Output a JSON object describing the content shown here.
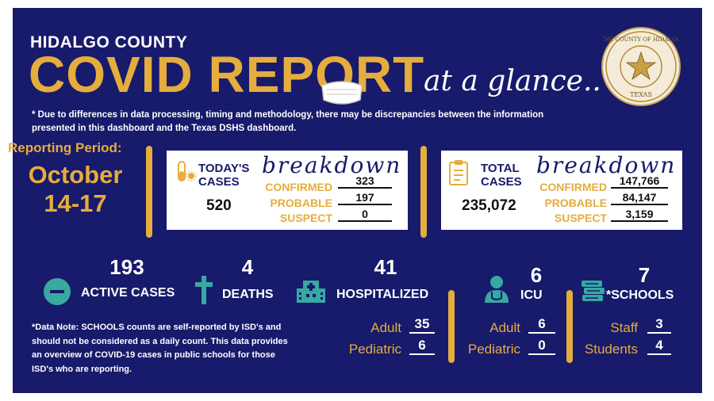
{
  "header": {
    "county": "HIDALGO COUNTY",
    "title": "COVID REPORT",
    "tagline": "at a glance..",
    "seal_text_top": "THE COUNTY OF HIDALGO",
    "seal_text_bottom": "TEXAS"
  },
  "disclaimer": "* Due to differences in data processing, timing and methodology, there may be discrepancies between the information presented in this dashboard and the Texas DSHS dashboard.",
  "reporting_period": {
    "label": "Reporting Period:",
    "month": "October",
    "days": "14-17"
  },
  "today": {
    "title_line1": "TODAY'S",
    "title_line2": "CASES",
    "total": "520",
    "breakdown_label": "breakdown",
    "rows": [
      {
        "label": "CONFIRMED",
        "value": "323"
      },
      {
        "label": "PROBABLE",
        "value": "197"
      },
      {
        "label": "SUSPECT",
        "value": "0"
      }
    ]
  },
  "total": {
    "title_line1": "TOTAL",
    "title_line2": "CASES",
    "total": "235,072",
    "breakdown_label": "breakdown",
    "rows": [
      {
        "label": "CONFIRMED",
        "value": "147,766"
      },
      {
        "label": "PROBABLE",
        "value": "84,147"
      },
      {
        "label": "SUSPECT",
        "value": "3,159"
      }
    ]
  },
  "stats": {
    "active": {
      "value": "193",
      "label": "ACTIVE CASES"
    },
    "deaths": {
      "value": "4",
      "label": "DEATHS"
    },
    "hospitalized": {
      "value": "41",
      "label": "HOSPITALIZED",
      "adult_label": "Adult",
      "adult": "35",
      "pediatric_label": "Pediatric",
      "pediatric": "6"
    },
    "icu": {
      "value": "6",
      "label": "ICU",
      "adult_label": "Adult",
      "adult": "6",
      "pediatric_label": "Pediatric",
      "pediatric": "0"
    },
    "schools": {
      "value": "7",
      "label": "*SCHOOLS",
      "staff_label": "Staff",
      "staff": "3",
      "students_label": "Students",
      "students": "4"
    }
  },
  "data_note": "*Data Note: SCHOOLS counts are self-reported by ISD's and should not be considered as a daily count. This data provides an overview of COVID-19 cases in public schools for those ISD's who are reporting.",
  "colors": {
    "background": "#181a6b",
    "accent": "#e4ad3d",
    "active_icon": "#3aa9a0",
    "icon_teal": "#37a8a2"
  }
}
